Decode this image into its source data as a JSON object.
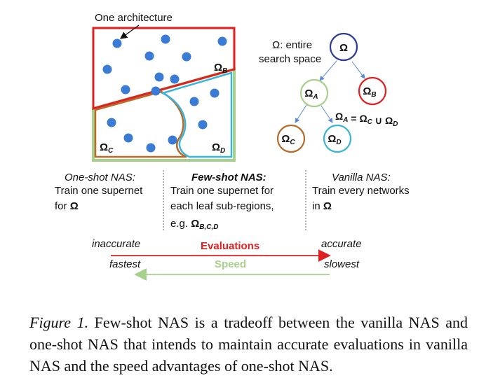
{
  "architecture_label": "One architecture",
  "regions": {
    "b": {
      "label_main": "Ω",
      "label_sub": "B",
      "color": "#e02020"
    },
    "c": {
      "label_main": "Ω",
      "label_sub": "C",
      "color": "#b86a2a"
    },
    "d": {
      "label_main": "Ω",
      "label_sub": "D",
      "color": "#3ab4d8"
    },
    "a_outline_color": "#a8d08d"
  },
  "tree": {
    "root_caption_lines": [
      "Ω: entire",
      "search space"
    ],
    "nodes": [
      {
        "id": "root",
        "main": "Ω",
        "sub": "",
        "color": "#2b3a9c"
      },
      {
        "id": "a",
        "main": "Ω",
        "sub": "A",
        "color": "#a8d08d"
      },
      {
        "id": "b",
        "main": "Ω",
        "sub": "B",
        "color": "#e02020"
      },
      {
        "id": "c",
        "main": "Ω",
        "sub": "C",
        "color": "#b86a2a"
      },
      {
        "id": "d",
        "main": "Ω",
        "sub": "D",
        "color": "#3ab4d8"
      }
    ],
    "equation": "Ω_A = Ω_C ∪ Ω_D"
  },
  "methods": [
    {
      "title": "One-shot NAS:",
      "lines": [
        "Train one supernet",
        "for Ω"
      ]
    },
    {
      "title": "Few-shot NAS:",
      "lines": [
        "Train one supernet for",
        "each leaf sub-regions,",
        "e.g. Ω_B,C,D"
      ]
    },
    {
      "title": "Vanilla NAS:",
      "lines": [
        "Train every networks",
        "in Ω"
      ]
    }
  ],
  "scales": {
    "left_top": "inaccurate",
    "right_top": "accurate",
    "left_bottom": "fastest",
    "right_bottom": "slowest",
    "evaluations_label": "Evaluations",
    "speed_label": "Speed",
    "evaluations_color": "#e02020",
    "speed_color": "#a8d08d"
  },
  "caption": {
    "label": "Figure 1.",
    "text": " Few-shot NAS is a tradeoff between the vanilla NAS and one-shot NAS that intends to maintain accurate evaluations in vanilla NAS and the speed advantages of one-shot NAS."
  },
  "dot_color": "#3a7bd5"
}
